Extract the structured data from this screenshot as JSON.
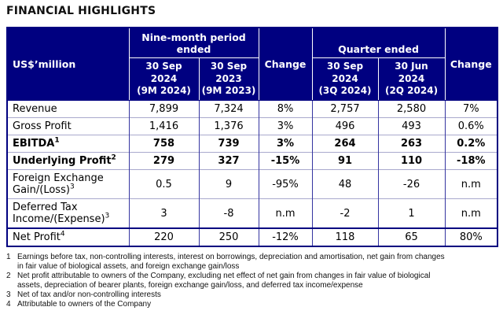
{
  "title": "FINANCIAL HIGHLIGHTS",
  "colors": {
    "header_bg": "#000080",
    "header_text": "#ffffff",
    "grid_vertical": "#3434a0",
    "grid_horizontal": "#a9a9cd",
    "body_text": "#000000"
  },
  "header": {
    "unit_label": "US$’million",
    "group_nine_month": "Nine-month period\nended",
    "group_quarter": "Quarter ended",
    "change_nine_month": "Change",
    "change_quarter": "Change",
    "subcols": [
      "30 Sep\n2024\n(9M 2024)",
      "30 Sep\n2023\n(9M 2023)",
      "30 Sep\n2024\n(3Q 2024)",
      "30 Jun\n2024\n(2Q 2024)"
    ]
  },
  "rows": [
    {
      "label": "Revenue",
      "sup": "",
      "emphasis": false,
      "separator_top": false,
      "values": [
        "7,899",
        "7,324",
        "8%",
        "2,757",
        "2,580",
        "7%"
      ]
    },
    {
      "label": "Gross Profit",
      "sup": "",
      "emphasis": false,
      "separator_top": false,
      "values": [
        "1,416",
        "1,376",
        "3%",
        "496",
        "493",
        "0.6%"
      ]
    },
    {
      "label": "EBITDA",
      "sup": "1",
      "emphasis": true,
      "separator_top": false,
      "values": [
        "758",
        "739",
        "3%",
        "264",
        "263",
        "0.2%"
      ]
    },
    {
      "label": "Underlying Profit",
      "sup": "2",
      "emphasis": true,
      "separator_top": false,
      "values": [
        "279",
        "327",
        "-15%",
        "91",
        "110",
        "-18%"
      ]
    },
    {
      "label": "Foreign Exchange Gain/(Loss)",
      "sup": "3",
      "emphasis": false,
      "separator_top": false,
      "values": [
        "0.5",
        "9",
        "-95%",
        "48",
        "-26",
        "n.m"
      ]
    },
    {
      "label": "Deferred Tax Income/(Expense)",
      "sup": "3",
      "emphasis": false,
      "separator_top": false,
      "values": [
        "3",
        "-8",
        "n.m",
        "-2",
        "1",
        "n.m"
      ]
    },
    {
      "label": "Net Profit",
      "sup": "4",
      "emphasis": false,
      "separator_top": true,
      "values": [
        "220",
        "250",
        "-12%",
        "118",
        "65",
        "80%"
      ]
    }
  ],
  "footnotes": [
    {
      "num": "1",
      "text": "Earnings before tax, non-controlling interests, interest on borrowings, depreciation and amortisation, net gain from changes\nin fair value of biological assets, and foreign exchange gain/loss"
    },
    {
      "num": "2",
      "text": "Net profit attributable to owners of the Company, excluding net effect of net gain from changes in fair value of biological\nassets, depreciation of bearer plants, foreign exchange gain/loss, and deferred tax income/expense"
    },
    {
      "num": "3",
      "text": "Net of tax and/or non-controlling interests"
    },
    {
      "num": "4",
      "text": "Attributable to owners of the Company"
    }
  ]
}
